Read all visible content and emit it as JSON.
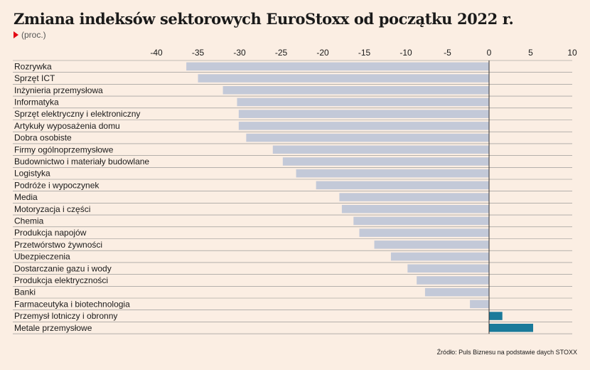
{
  "title": "Zmiana indeksów sektorowych EuroStoxx od początku 2022 r.",
  "subtitle": "(proc.)",
  "source": "Źródło: Puls Biznesu na podstawie daych STOXX",
  "colors": {
    "negative": "#c3c9d8",
    "positive": "#1a7a9a",
    "accent": "#e30613",
    "row_line": "#8a8a8a",
    "background": "#fbeee3"
  },
  "chart_data": {
    "type": "bar",
    "orientation": "horizontal",
    "xlim": [
      -40,
      10
    ],
    "xticks": [
      -40,
      -35,
      -30,
      -25,
      -20,
      -15,
      -10,
      -5,
      0,
      5,
      10
    ],
    "categories": [
      "Rozrywka",
      "Sprzęt ICT",
      "Inżynieria przemysłowa",
      "Informatyka",
      "Sprzęt elektryczny i elektroniczny",
      "Artykuły wyposażenia domu",
      "Dobra osobiste",
      "Firmy ogólnoprzemysłowe",
      "Budownictwo i materiały budowlane",
      "Logistyka",
      "Podróże i wypoczynek",
      "Media",
      "Motoryzacja i części",
      "Chemia",
      "Produkcja napojów",
      "Przetwórstwo żywności",
      "Ubezpieczenia",
      "Dostarczanie gazu i wody",
      "Produkcja elektryczności",
      "Banki",
      "Farmaceutyka i biotechnologia",
      "Przemysł lotniczy i obronny",
      "Metale przemysłowe"
    ],
    "values": [
      -36.4,
      -35.0,
      -32.0,
      -30.3,
      -30.1,
      -30.1,
      -29.2,
      -26.0,
      -24.8,
      -23.2,
      -20.8,
      -18.0,
      -17.7,
      -16.3,
      -15.6,
      -13.8,
      -11.8,
      -9.8,
      -8.7,
      -7.7,
      -2.3,
      1.6,
      5.3
    ]
  }
}
